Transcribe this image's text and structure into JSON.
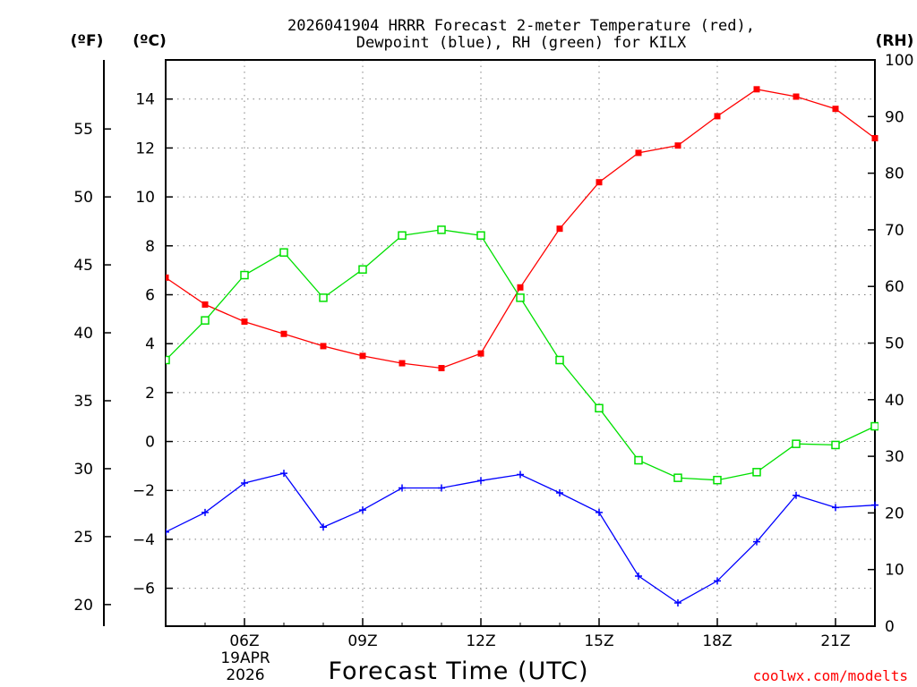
{
  "title_line1": "2026041904 HRRR Forecast 2-meter Temperature (red),",
  "title_line2": "Dewpoint (blue), RH (green) for KILX",
  "units": {
    "fahrenheit": "(ºF)",
    "celsius": "(ºC)",
    "rh": "(RH)"
  },
  "date_label_line1": "19APR",
  "date_label_line2": "2026",
  "credit": "coolwx.com/modelts",
  "colors": {
    "temperature": "#ff0000",
    "dewpoint": "#0000ff",
    "rh": "#00e000"
  },
  "chart_data": {
    "type": "line",
    "title": "2026041904 HRRR Forecast 2-meter Temperature (red), Dewpoint (blue), RH (green) for KILX",
    "xlabel": "Forecast Time (UTC)",
    "x": [
      4,
      5,
      6,
      7,
      8,
      9,
      10,
      11,
      12,
      13,
      14,
      15,
      16,
      17,
      18,
      19,
      20,
      21,
      22
    ],
    "x_ticks": [
      {
        "x": 6,
        "label": "06Z"
      },
      {
        "x": 9,
        "label": "09Z"
      },
      {
        "x": 12,
        "label": "12Z"
      },
      {
        "x": 15,
        "label": "15Z"
      },
      {
        "x": 18,
        "label": "18Z"
      },
      {
        "x": 21,
        "label": "21Z"
      }
    ],
    "xlim": [
      4,
      22
    ],
    "ylim_celsius": [
      -7.55,
      15.6
    ],
    "ylim_rh": [
      0,
      100
    ],
    "celsius_ticks": [
      14,
      12,
      10,
      8,
      6,
      4,
      2,
      0,
      -2,
      -4,
      -6
    ],
    "fahrenheit_ticks": [
      55,
      50,
      45,
      40,
      35,
      30,
      25,
      20
    ],
    "rh_ticks": [
      100,
      90,
      80,
      70,
      60,
      50,
      40,
      30,
      20,
      10,
      0
    ],
    "series": [
      {
        "name": "Temperature (°C)",
        "axis": "celsius",
        "marker": "filled-square",
        "values": [
          6.7,
          5.6,
          4.9,
          4.4,
          3.9,
          3.5,
          3.2,
          3.0,
          3.6,
          6.3,
          8.7,
          10.6,
          11.8,
          12.1,
          13.3,
          14.4,
          14.1,
          13.6,
          12.4
        ]
      },
      {
        "name": "Dewpoint (°C)",
        "axis": "celsius",
        "marker": "plus",
        "values": [
          -3.7,
          -2.9,
          -1.7,
          -1.3,
          -3.5,
          -2.8,
          -1.9,
          -1.9,
          -1.6,
          -1.35,
          -2.1,
          -2.9,
          -5.5,
          -6.6,
          -5.7,
          -4.1,
          -2.2,
          -2.7,
          -2.6
        ]
      },
      {
        "name": "RH (%)",
        "axis": "rh",
        "marker": "open-square",
        "values": [
          47,
          54,
          62,
          66,
          58,
          63,
          69,
          70,
          69,
          58,
          47,
          38.5,
          29.3,
          26.2,
          25.8,
          27.2,
          32.2,
          32.0,
          35.3
        ]
      }
    ]
  }
}
